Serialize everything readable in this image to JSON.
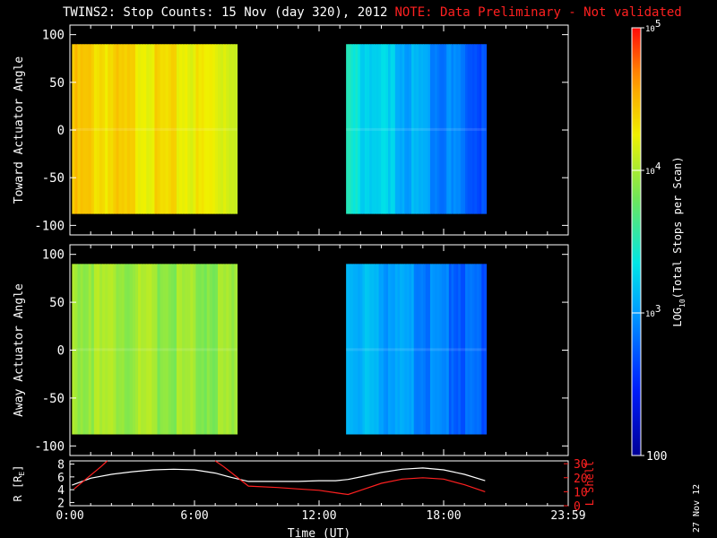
{
  "title": {
    "main": "TWINS2: Stop Counts: 15 Nov (day 320), 2012",
    "note": "NOTE: Data Preliminary - Not validated",
    "note_color": "#ff2020"
  },
  "datestamp": "27 Nov 12",
  "chart_data": [
    {
      "type": "heatmap",
      "title": "",
      "xlabel": "",
      "ylabel": "Toward Actuator Angle",
      "xlim": [
        0,
        24
      ],
      "ylim": [
        -110,
        110
      ],
      "yticks": [
        100,
        50,
        0,
        -50,
        -100
      ],
      "tick_labels_y": [
        "100",
        "50",
        "0",
        "-50",
        "-100"
      ],
      "x_tick_labels": [],
      "data_y_range": [
        -88,
        90
      ],
      "segments": [
        {
          "x_start": 0.1,
          "x_end": 8.05,
          "log10_counts_start": 4.4,
          "log10_counts_end": 4.2,
          "description": "orange/yellow band"
        },
        {
          "x_start": 13.3,
          "x_end": 20.05,
          "log10_counts_start": 3.4,
          "log10_counts_end": 2.7,
          "description": "cyan/blue band"
        }
      ]
    },
    {
      "type": "heatmap",
      "title": "",
      "xlabel": "",
      "ylabel": "Away Actuator Angle",
      "xlim": [
        0,
        24
      ],
      "ylim": [
        -110,
        110
      ],
      "yticks": [
        100,
        50,
        0,
        -50,
        -100
      ],
      "tick_labels_y": [
        "100",
        "50",
        "0",
        "-50",
        "-100"
      ],
      "x_tick_labels": [],
      "data_y_range": [
        -88,
        90
      ],
      "segments": [
        {
          "x_start": 0.1,
          "x_end": 8.05,
          "log10_counts_start": 4.0,
          "log10_counts_end": 3.9,
          "description": "yellow/green band"
        },
        {
          "x_start": 13.3,
          "x_end": 20.05,
          "log10_counts_start": 3.2,
          "log10_counts_end": 2.7,
          "description": "cyan/blue band"
        }
      ]
    },
    {
      "type": "line",
      "title": "",
      "xlabel": "Time (UT)",
      "ylabel_left": "R [R",
      "ylabel_left_sub": "E",
      "ylabel_left_close": "]",
      "ylabel_right": "L Shell",
      "xlim": [
        0,
        24
      ],
      "ylim_left": [
        1.5,
        8.5
      ],
      "ylim_right": [
        0,
        32
      ],
      "yticks_left": [
        "8",
        "6",
        "4",
        "2"
      ],
      "yticks_right": [
        "30",
        "20",
        "10",
        "0"
      ],
      "xticks": [
        0,
        6,
        12,
        18,
        24
      ],
      "tick_labels_x": [
        "0:00",
        "6:00",
        "12:00",
        "18:00",
        "23:59"
      ],
      "series": [
        {
          "axis": "left",
          "color": "#ffffff",
          "x": [
            0.1,
            1,
            2,
            3,
            4,
            5,
            6,
            7,
            7.8,
            8.6,
            10,
            11,
            12,
            12.8,
            13.4,
            14,
            15,
            16,
            17,
            18,
            19,
            20
          ],
          "y": [
            4.7,
            5.8,
            6.4,
            6.8,
            7.1,
            7.2,
            7.1,
            6.6,
            5.9,
            5.3,
            5.3,
            5.3,
            5.4,
            5.4,
            5.6,
            6.0,
            6.7,
            7.2,
            7.4,
            7.1,
            6.4,
            5.4
          ]
        },
        {
          "axis": "right",
          "color": "#ff2020",
          "segments": [
            {
              "x": [
                0.2,
                1.5,
                1.8
              ],
              "y": [
                12,
                28,
                32
              ]
            },
            {
              "x": [
                7.0,
                7.4,
                8.6,
                10,
                11,
                12,
                12.9,
                13.4,
                14,
                15,
                16,
                17,
                18,
                19,
                20
              ],
              "y": [
                32,
                28,
                14,
                13,
                12,
                11,
                9,
                8,
                11,
                16,
                19,
                20,
                19,
                15,
                10
              ]
            }
          ]
        }
      ]
    }
  ],
  "colorbar": {
    "label_prefix": "LOG",
    "label_sub": "10",
    "label_suffix": "(Total Stops per Scan)",
    "log_range": [
      2,
      5
    ],
    "ticks": [
      {
        "log": 5,
        "base": "10",
        "exp": "5"
      },
      {
        "log": 4,
        "base": "10",
        "exp": "4"
      },
      {
        "log": 3,
        "base": "10",
        "exp": "3"
      },
      {
        "log": 2,
        "text": "100"
      }
    ]
  }
}
